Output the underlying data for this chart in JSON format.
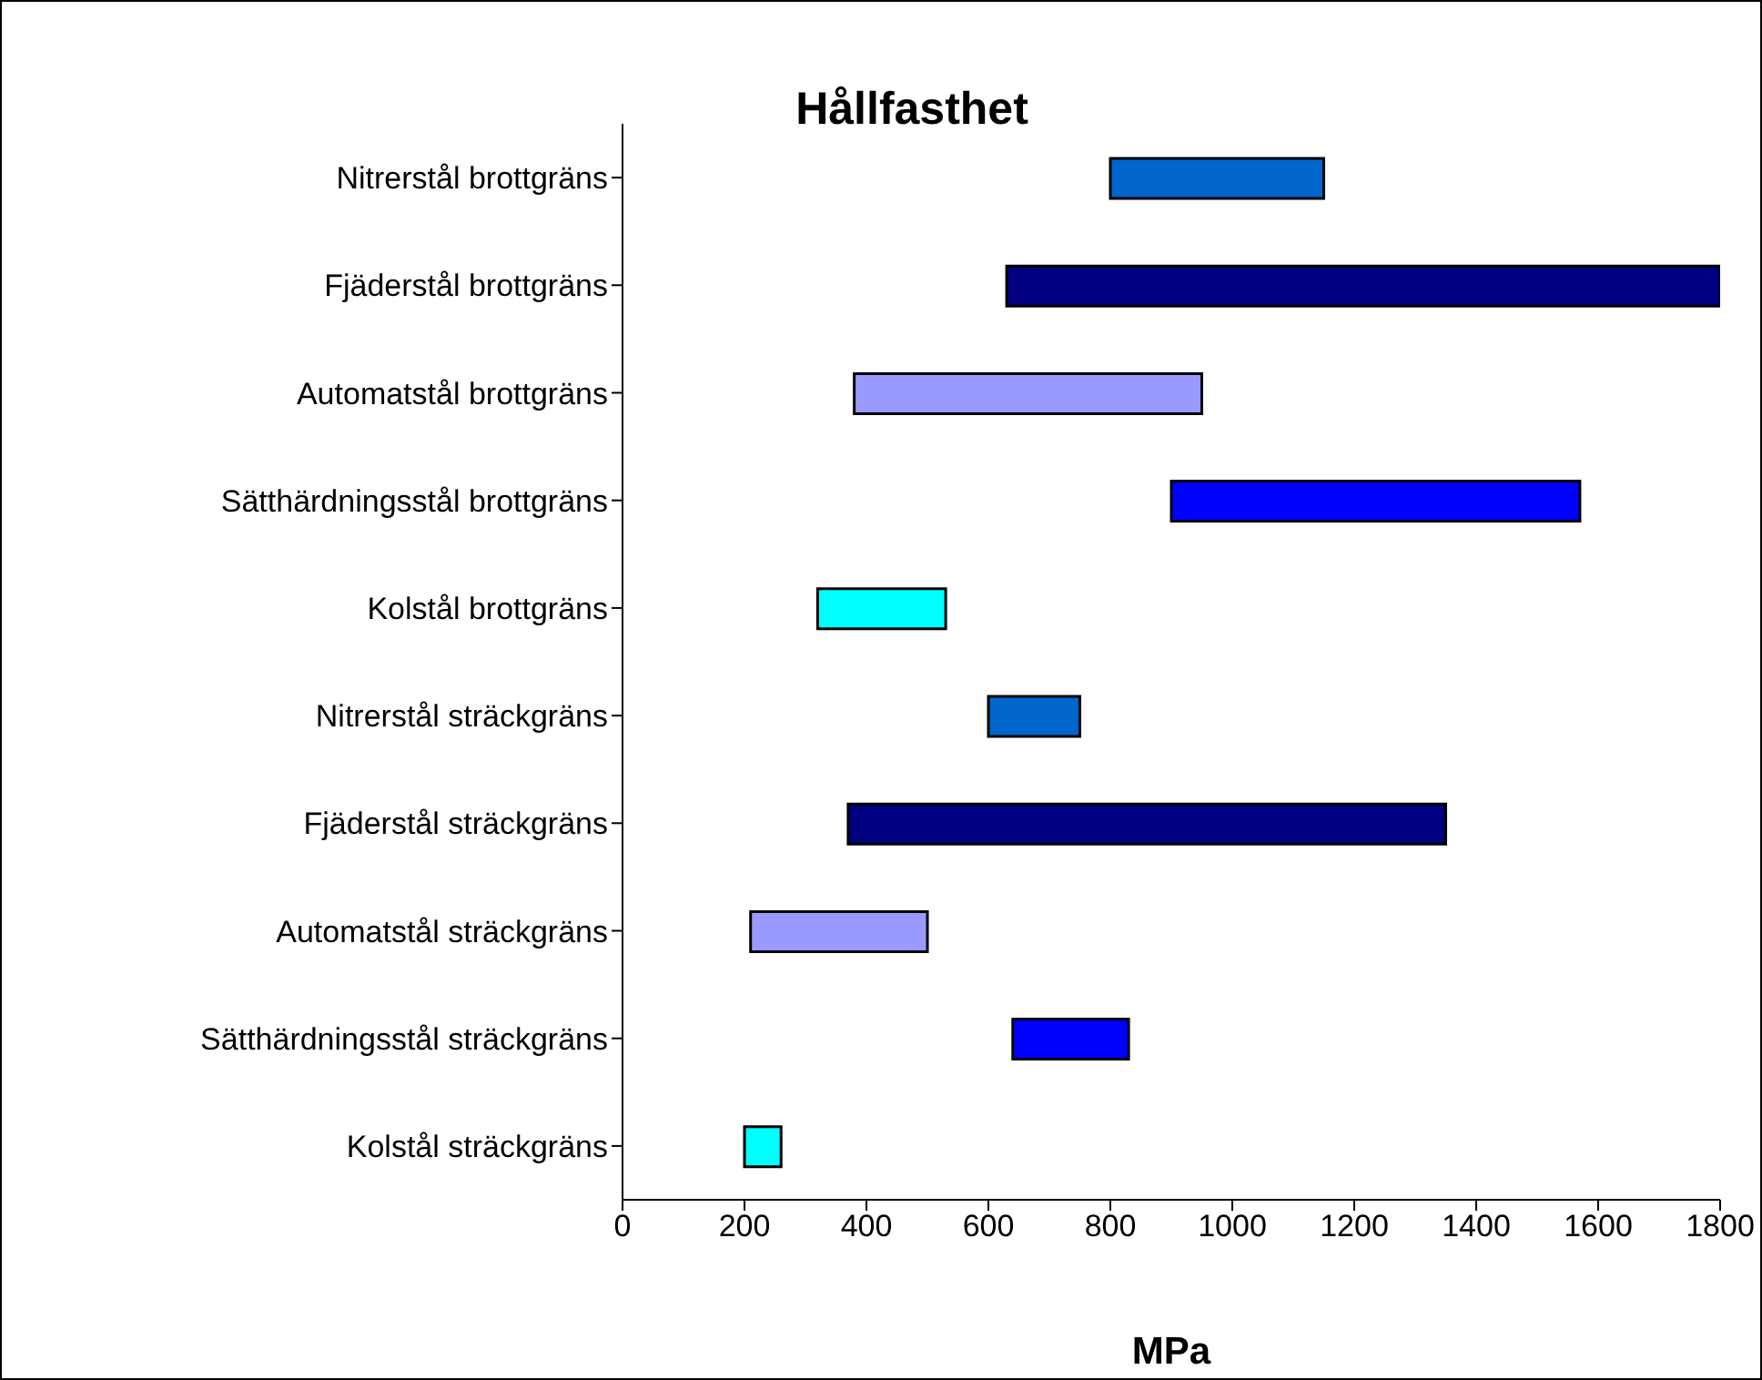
{
  "chart_data": {
    "type": "bar",
    "orientation": "horizontal",
    "title": "Hållfasthet",
    "xlabel": "MPa",
    "categories": [
      "Nitrerstål brottgräns",
      "Fjäderstål brottgräns",
      "Automatstål brottgräns",
      "Sätthärdningsstål brottgräns",
      "Kolstål brottgräns",
      "Nitrerstål sträckgräns",
      "Fjäderstål sträckgräns",
      "Automatstål sträckgräns",
      "Sätthärdningsstål sträckgräns",
      "Kolstål sträckgräns"
    ],
    "base": [
      800,
      630,
      380,
      900,
      320,
      600,
      370,
      210,
      640,
      200
    ],
    "values": [
      350,
      1170,
      570,
      670,
      210,
      150,
      980,
      290,
      190,
      60
    ],
    "colors": [
      "#0066cc",
      "#000080",
      "#9999ff",
      "#0000ff",
      "#00ffff",
      "#0066cc",
      "#000080",
      "#9999ff",
      "#0000ff",
      "#00ffff"
    ],
    "xlim": [
      0,
      1800
    ],
    "xticks": [
      0,
      200,
      400,
      600,
      800,
      1000,
      1200,
      1400,
      1600,
      1800
    ],
    "grid": false,
    "legend": false
  }
}
